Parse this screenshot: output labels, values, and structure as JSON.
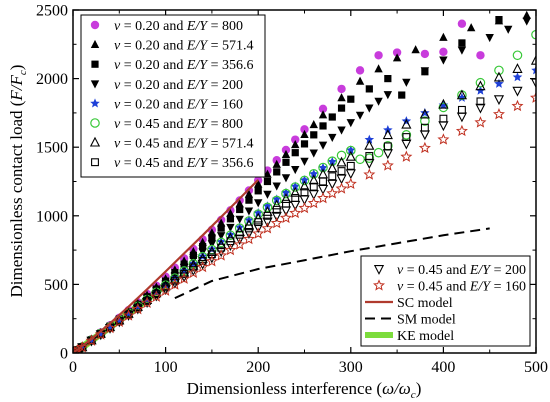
{
  "chart_data": {
    "type": "scatter",
    "xlabel": "Dimensionless interference (ω/ω_c)",
    "xlabel_main": "Dimensionless interference (",
    "xlabel_sym": "ω/ω",
    "xlabel_sub": "c",
    "xlabel_close": ")",
    "ylabel": "Dimensionless contact load (F/F_c)",
    "ylabel_main": "Dimensionless contact load (",
    "ylabel_sym": "F/F",
    "ylabel_sub": "c",
    "ylabel_close": ")",
    "xlim": [
      0,
      500
    ],
    "ylim": [
      0,
      2500
    ],
    "xticks": [
      0,
      100,
      200,
      300,
      400,
      500
    ],
    "yticks": [
      0,
      500,
      1000,
      1500,
      2000,
      2500
    ],
    "grid": false,
    "legend_placement": [
      "top-left",
      "bottom-right"
    ],
    "series": [
      {
        "name": "ν = 0.20 and E/Y = 800",
        "marker": "circle-filled",
        "color": "#c83cdc",
        "legend": 1,
        "x": [
          2,
          5,
          10,
          20,
          30,
          40,
          50,
          60,
          70,
          80,
          90,
          100,
          110,
          120,
          130,
          140,
          150,
          160,
          170,
          180,
          190,
          200,
          210,
          220,
          230,
          240,
          250,
          270,
          290,
          310,
          330,
          350,
          380,
          400,
          420,
          440
        ],
        "y": [
          8,
          22,
          46,
          100,
          150,
          202,
          256,
          312,
          370,
          430,
          490,
          556,
          622,
          690,
          758,
          828,
          898,
          970,
          1040,
          1112,
          1185,
          1258,
          1330,
          1405,
          1480,
          1555,
          1630,
          1780,
          1925,
          2060,
          2170,
          2190,
          2180,
          2195,
          2400,
          2170
        ]
      },
      {
        "name": "ν = 0.20 and E/Y = 571.4",
        "marker": "triangle-up-filled",
        "color": "#000000",
        "legend": 1,
        "x": [
          2,
          5,
          10,
          20,
          30,
          40,
          50,
          60,
          70,
          80,
          90,
          100,
          110,
          120,
          130,
          140,
          150,
          160,
          170,
          180,
          190,
          200,
          210,
          220,
          230,
          240,
          250,
          260,
          270,
          290,
          310,
          330,
          350,
          370,
          400,
          430,
          460,
          490
        ],
        "y": [
          8,
          21,
          45,
          98,
          148,
          200,
          252,
          306,
          362,
          420,
          480,
          540,
          604,
          670,
          738,
          806,
          876,
          946,
          1016,
          1086,
          1156,
          1230,
          1302,
          1374,
          1446,
          1518,
          1592,
          1664,
          1735,
          1860,
          1980,
          2070,
          2150,
          2210,
          2300,
          2370,
          2420,
          2460
        ]
      },
      {
        "name": "ν = 0.20 and E/Y = 356.6",
        "marker": "square-filled",
        "color": "#000000",
        "legend": 1,
        "x": [
          2,
          5,
          10,
          20,
          30,
          40,
          50,
          60,
          70,
          80,
          90,
          100,
          110,
          120,
          130,
          140,
          150,
          160,
          170,
          180,
          190,
          200,
          210,
          220,
          230,
          240,
          250,
          260,
          270,
          280,
          290,
          300,
          320,
          340,
          355,
          380,
          420,
          460
        ],
        "y": [
          8,
          20,
          44,
          96,
          145,
          196,
          248,
          300,
          355,
          410,
          466,
          524,
          586,
          648,
          712,
          776,
          842,
          910,
          978,
          1046,
          1114,
          1182,
          1250,
          1320,
          1390,
          1460,
          1524,
          1590,
          1655,
          1720,
          1785,
          1850,
          1925,
          2000,
          1880,
          2050,
          2260,
          2430
        ]
      },
      {
        "name": "ν = 0.20 and E/Y = 200",
        "marker": "triangle-down-filled",
        "color": "#000000",
        "legend": 1,
        "x": [
          2,
          5,
          10,
          20,
          30,
          40,
          50,
          60,
          70,
          80,
          90,
          100,
          110,
          120,
          130,
          140,
          150,
          160,
          170,
          180,
          190,
          200,
          210,
          220,
          230,
          240,
          250,
          260,
          270,
          280,
          290,
          300,
          310,
          320,
          330,
          340,
          360,
          380,
          400,
          420,
          450,
          470,
          490
        ],
        "y": [
          8,
          20,
          43,
          94,
          142,
          192,
          243,
          294,
          346,
          400,
          454,
          508,
          564,
          622,
          680,
          738,
          796,
          856,
          916,
          976,
          1036,
          1096,
          1158,
          1218,
          1278,
          1338,
          1398,
          1458,
          1516,
          1572,
          1626,
          1680,
          1734,
          1786,
          1836,
          1884,
          1974,
          2058,
          2136,
          2208,
          2300,
          2360,
          2420
        ]
      },
      {
        "name": "ν = 0.20 and E/Y = 160",
        "marker": "star-filled",
        "color": "#1e40d8",
        "legend": 1,
        "x": [
          2,
          5,
          10,
          20,
          30,
          40,
          50,
          60,
          70,
          80,
          90,
          100,
          110,
          120,
          130,
          140,
          150,
          160,
          170,
          180,
          190,
          200,
          210,
          220,
          230,
          240,
          250,
          260,
          270,
          280,
          300,
          320,
          340,
          360,
          380,
          400,
          420,
          440,
          460,
          480,
          500
        ],
        "y": [
          8,
          20,
          43,
          93,
          141,
          190,
          240,
          290,
          341,
          392,
          443,
          495,
          548,
          600,
          652,
          705,
          757,
          810,
          862,
          915,
          968,
          1020,
          1070,
          1120,
          1168,
          1214,
          1260,
          1305,
          1350,
          1394,
          1478,
          1555,
          1625,
          1690,
          1750,
          1806,
          1860,
          1912,
          1962,
          2010,
          2060
        ]
      },
      {
        "name": "ν = 0.45 and E/Y = 800",
        "marker": "circle-open",
        "color": "#38c838",
        "legend": 1,
        "x": [
          2,
          5,
          10,
          20,
          30,
          40,
          50,
          60,
          70,
          80,
          90,
          100,
          110,
          120,
          130,
          140,
          150,
          160,
          170,
          180,
          190,
          200,
          210,
          220,
          230,
          240,
          250,
          260,
          270,
          280,
          290,
          300,
          310,
          320,
          330,
          340,
          360,
          380,
          400,
          420,
          440,
          460,
          480,
          500
        ],
        "y": [
          8,
          20,
          43,
          94,
          142,
          191,
          240,
          290,
          340,
          390,
          442,
          494,
          546,
          598,
          650,
          702,
          754,
          806,
          858,
          910,
          962,
          1012,
          1062,
          1112,
          1162,
          1210,
          1258,
          1306,
          1352,
          1398,
          1440,
          1476,
          1412,
          1420,
          1460,
          1510,
          1590,
          1690,
          1790,
          1880,
          1970,
          2060,
          2170,
          2320
        ]
      },
      {
        "name": "ν = 0.45 and E/Y = 571.4",
        "marker": "triangle-up-open",
        "color": "#000000",
        "legend": 1,
        "x": [
          2,
          5,
          10,
          20,
          30,
          40,
          50,
          60,
          70,
          80,
          90,
          100,
          110,
          120,
          130,
          140,
          150,
          160,
          170,
          180,
          190,
          200,
          210,
          220,
          230,
          240,
          250,
          260,
          270,
          280,
          290,
          300,
          320,
          340,
          360,
          380,
          400,
          420,
          440,
          460,
          480,
          500
        ],
        "y": [
          8,
          20,
          42,
          92,
          140,
          188,
          237,
          286,
          336,
          386,
          436,
          486,
          536,
          586,
          636,
          686,
          736,
          786,
          836,
          884,
          932,
          980,
          1028,
          1076,
          1122,
          1168,
          1214,
          1258,
          1302,
          1346,
          1388,
          1430,
          1510,
          1588,
          1664,
          1738,
          1810,
          1878,
          1944,
          2008,
          2070,
          2130
        ]
      },
      {
        "name": "ν = 0.45 and E/Y = 356.6",
        "marker": "square-open",
        "color": "#000000",
        "legend": 1,
        "x": [
          2,
          5,
          10,
          20,
          30,
          40,
          50,
          60,
          70,
          80,
          90,
          100,
          110,
          120,
          130,
          140,
          150,
          160,
          170,
          180,
          190,
          200,
          210,
          220,
          230,
          240,
          250,
          260,
          270,
          280,
          290,
          300,
          320,
          340,
          360,
          380,
          400,
          420,
          440
        ],
        "y": [
          8,
          20,
          42,
          91,
          138,
          186,
          234,
          282,
          331,
          380,
          429,
          478,
          527,
          576,
          624,
          672,
          720,
          768,
          815,
          862,
          908,
          954,
          1000,
          1044,
          1088,
          1130,
          1172,
          1212,
          1250,
          1288,
          1326,
          1364,
          1436,
          1506,
          1574,
          1642,
          1708,
          1772,
          1834
        ]
      },
      {
        "name": "ν = 0.45 and E/Y = 200",
        "marker": "triangle-down-open",
        "color": "#000000",
        "legend": 2,
        "x": [
          2,
          5,
          10,
          20,
          30,
          40,
          50,
          60,
          70,
          80,
          90,
          100,
          110,
          120,
          130,
          140,
          150,
          160,
          170,
          180,
          190,
          200,
          210,
          220,
          230,
          240,
          250,
          260,
          270,
          280,
          290,
          300,
          320,
          340,
          360,
          380,
          400,
          420,
          440,
          460,
          480,
          500
        ],
        "y": [
          8,
          20,
          42,
          90,
          136,
          183,
          230,
          277,
          324,
          371,
          418,
          465,
          512,
          558,
          604,
          650,
          696,
          742,
          786,
          830,
          874,
          916,
          958,
          1000,
          1040,
          1080,
          1120,
          1158,
          1196,
          1234,
          1272,
          1310,
          1384,
          1456,
          1526,
          1594,
          1660,
          1724,
          1788,
          1850,
          1912,
          1972
        ]
      },
      {
        "name": "ν = 0.45 and E/Y = 160",
        "marker": "star-open",
        "color": "#c03020",
        "legend": 2,
        "x": [
          2,
          5,
          10,
          20,
          30,
          40,
          50,
          60,
          70,
          80,
          90,
          100,
          110,
          120,
          130,
          140,
          150,
          160,
          170,
          180,
          190,
          200,
          210,
          220,
          230,
          240,
          250,
          260,
          270,
          280,
          290,
          300,
          320,
          340,
          360,
          380,
          400,
          420,
          440,
          460,
          480,
          500
        ],
        "y": [
          8,
          20,
          41,
          89,
          135,
          181,
          227,
          273,
          319,
          365,
          410,
          454,
          498,
          541,
          584,
          626,
          668,
          710,
          750,
          790,
          830,
          870,
          908,
          946,
          984,
          1020,
          1056,
          1092,
          1128,
          1163,
          1198,
          1232,
          1300,
          1366,
          1430,
          1494,
          1556,
          1618,
          1680,
          1740,
          1800,
          1860
        ]
      },
      {
        "name": "SC model",
        "marker": "line-solid",
        "color": "#b03a2e",
        "legend": 2,
        "x": [
          0,
          20,
          40,
          60,
          80,
          100,
          120,
          140,
          160,
          180,
          200
        ],
        "y": [
          0,
          102,
          216,
          338,
          464,
          594,
          726,
          858,
          992,
          1126,
          1262
        ]
      },
      {
        "name": "SM model",
        "marker": "line-dashed",
        "color": "#000000",
        "legend": 2,
        "x": [
          110,
          150,
          200,
          250,
          300,
          350,
          400,
          450
        ],
        "y": [
          400,
          525,
          612,
          676,
          742,
          800,
          858,
          908
        ]
      },
      {
        "name": "KE model",
        "marker": "line-thick",
        "color": "#7cdc3c",
        "legend": 2,
        "x": [
          0,
          10,
          20,
          30,
          40,
          50,
          60,
          70,
          80,
          90,
          100
        ],
        "y": [
          0,
          42,
          92,
          140,
          190,
          240,
          290,
          340,
          392,
          446,
          498
        ]
      }
    ]
  }
}
